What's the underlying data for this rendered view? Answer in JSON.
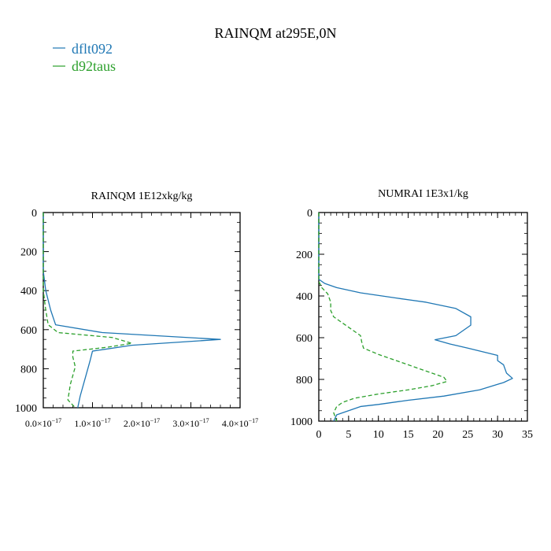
{
  "figure": {
    "title": "RAINQM at295E,0N",
    "legend": [
      {
        "label": "dflt092",
        "color": "#1f77b4",
        "dash": "solid"
      },
      {
        "label": "d92taus",
        "color": "#2ca02c",
        "dash": "dashed"
      }
    ]
  },
  "chart_data": [
    {
      "type": "line",
      "title": "RAINQM  1E12xkg/kg",
      "xlim": [
        0,
        4e-17
      ],
      "ylim": [
        1000,
        0
      ],
      "y_inverted": true,
      "x_ticks": [
        0,
        1e-17,
        2e-17,
        3e-17,
        4e-17
      ],
      "x_tick_labels": [
        {
          "mant": "0.0",
          "exp": "−17"
        },
        {
          "mant": "1.0",
          "exp": "−17"
        },
        {
          "mant": "2.0",
          "exp": "−17"
        },
        {
          "mant": "3.0",
          "exp": "−17"
        },
        {
          "mant": "4.0",
          "exp": "−17"
        }
      ],
      "y_ticks": [
        0,
        200,
        400,
        600,
        800,
        1000
      ],
      "y_tick_labels": [
        "0",
        "200",
        "400",
        "600",
        "800",
        "1000"
      ],
      "series": [
        {
          "name": "dflt092",
          "color": "#1f77b4",
          "dash": "solid",
          "points": [
            [
              0,
              0
            ],
            [
              0,
              300
            ],
            [
              5e-19,
              400
            ],
            [
              1.5e-18,
              500
            ],
            [
              2.5e-18,
              575
            ],
            [
              1.2e-17,
              615
            ],
            [
              3.6e-17,
              650
            ],
            [
              1.8e-17,
              680
            ],
            [
              1e-17,
              710
            ],
            [
              9.5e-18,
              760
            ],
            [
              8.5e-18,
              850
            ],
            [
              7.5e-18,
              940
            ],
            [
              7e-18,
              1000
            ]
          ]
        },
        {
          "name": "d92taus",
          "color": "#2ca02c",
          "dash": "dashed",
          "points": [
            [
              0,
              0
            ],
            [
              0,
              400
            ],
            [
              5e-19,
              500
            ],
            [
              1e-18,
              575
            ],
            [
              3e-18,
              615
            ],
            [
              1.4e-17,
              640
            ],
            [
              1.8e-17,
              670
            ],
            [
              1.3e-17,
              690
            ],
            [
              6e-18,
              710
            ],
            [
              6e-18,
              740
            ],
            [
              6.5e-18,
              790
            ],
            [
              5.5e-18,
              880
            ],
            [
              5e-18,
              960
            ],
            [
              6.5e-18,
              1000
            ]
          ]
        }
      ]
    },
    {
      "type": "line",
      "title": "NUMRAI  1E3x1/kg",
      "xlim": [
        0,
        35
      ],
      "ylim": [
        1000,
        0
      ],
      "y_inverted": true,
      "x_ticks": [
        0,
        5,
        10,
        15,
        20,
        25,
        30,
        35
      ],
      "x_tick_labels": [
        "0",
        "5",
        "10",
        "15",
        "20",
        "25",
        "30",
        "35"
      ],
      "y_ticks": [
        0,
        200,
        400,
        600,
        800,
        1000
      ],
      "y_tick_labels": [
        "0",
        "200",
        "400",
        "600",
        "800",
        "1000"
      ],
      "series": [
        {
          "name": "dflt092",
          "color": "#1f77b4",
          "dash": "solid",
          "points": [
            [
              0,
              0
            ],
            [
              0,
              320
            ],
            [
              1,
              340
            ],
            [
              3,
              360
            ],
            [
              7,
              385
            ],
            [
              13,
              410
            ],
            [
              18,
              430
            ],
            [
              23,
              460
            ],
            [
              25.5,
              500
            ],
            [
              25.5,
              540
            ],
            [
              23,
              590
            ],
            [
              19.5,
              610
            ],
            [
              22,
              630
            ],
            [
              25,
              650
            ],
            [
              30,
              685
            ],
            [
              30,
              710
            ],
            [
              31,
              730
            ],
            [
              31.5,
              770
            ],
            [
              32.5,
              795
            ],
            [
              31,
              815
            ],
            [
              27,
              850
            ],
            [
              21,
              880
            ],
            [
              15,
              900
            ],
            [
              10,
              920
            ],
            [
              7,
              930
            ],
            [
              5,
              950
            ],
            [
              3,
              970
            ],
            [
              2.5,
              1000
            ]
          ]
        },
        {
          "name": "d92taus",
          "color": "#2ca02c",
          "dash": "dashed",
          "points": [
            [
              0,
              0
            ],
            [
              0,
              330
            ],
            [
              0.5,
              360
            ],
            [
              1.5,
              390
            ],
            [
              2,
              430
            ],
            [
              2,
              470
            ],
            [
              2.5,
              500
            ],
            [
              4,
              530
            ],
            [
              5.5,
              560
            ],
            [
              7,
              590
            ],
            [
              7.2,
              620
            ],
            [
              7.5,
              650
            ],
            [
              10,
              680
            ],
            [
              13,
              710
            ],
            [
              16,
              740
            ],
            [
              19,
              770
            ],
            [
              21,
              790
            ],
            [
              21.5,
              810
            ],
            [
              19,
              830
            ],
            [
              15,
              850
            ],
            [
              10,
              870
            ],
            [
              6,
              890
            ],
            [
              4,
              910
            ],
            [
              3,
              930
            ],
            [
              2.5,
              960
            ],
            [
              3,
              1000
            ]
          ]
        }
      ]
    }
  ]
}
